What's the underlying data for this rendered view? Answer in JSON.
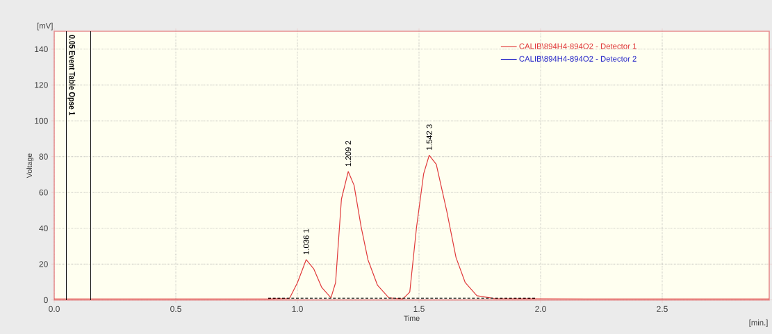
{
  "chart_data": {
    "type": "line",
    "xlabel": "Time",
    "ylabel": "Voltage",
    "annotations": [
      "[mV]",
      "[min.]",
      {
        "text": "1.036 1",
        "x": 1.036,
        "y": 22.5
      },
      {
        "text": "1.209 2",
        "x": 1.209,
        "y": 71.7
      },
      {
        "text": "1.542 3",
        "x": 1.542,
        "y": 80.8
      }
    ],
    "xlim": [
      0,
      2.94
    ],
    "ylim": [
      0,
      150
    ],
    "xticks": [
      {
        "value": 0,
        "label": "0.0"
      },
      0.5,
      {
        "value": 1,
        "label": "1.0"
      },
      1.5,
      {
        "value": 2,
        "label": "2.0"
      },
      2.5
    ],
    "yticks": [
      0,
      20,
      40,
      60,
      80,
      100,
      120,
      140
    ],
    "grid": true,
    "legend": "top right",
    "marker": "none",
    "ref_lines": [
      {
        "axis": "x",
        "value": 0.05,
        "label": "0.05 Event Table Opse 1",
        "color": "#000000"
      },
      {
        "axis": "x",
        "value": 0.15,
        "color": "#000000"
      }
    ],
    "series": [
      {
        "name": "CALIB\\894H4-894O2 - Detector 1",
        "color": "#e03a3a",
        "x": [
          0,
          0.5,
          0.88,
          0.967,
          1.0,
          1.036,
          1.067,
          1.1,
          1.138,
          1.157,
          1.181,
          1.209,
          1.233,
          1.262,
          1.29,
          1.329,
          1.376,
          1.433,
          1.462,
          1.49,
          1.519,
          1.542,
          1.571,
          1.614,
          1.652,
          1.69,
          1.738,
          1.814,
          2.2,
          2.94
        ],
        "values": [
          0.5,
          0.5,
          0.5,
          0.8,
          9.6,
          22.5,
          17.4,
          7,
          1.2,
          9.7,
          56.3,
          71.7,
          64,
          40.8,
          22.5,
          8.3,
          1.2,
          0.5,
          4.4,
          40.8,
          70.4,
          80.8,
          75.7,
          49.7,
          23.8,
          9.7,
          2.4,
          0.7,
          0.5,
          0.5
        ]
      },
      {
        "name": "CALIB\\894H4-894O2 - Detector 2",
        "color": "#2a2ac8",
        "values": [
          null,
          null
        ]
      },
      {
        "color": "#000000",
        "line_style": "dashed",
        "x": [
          0.88,
          1.98
        ],
        "values": [
          1,
          1
        ]
      }
    ]
  }
}
